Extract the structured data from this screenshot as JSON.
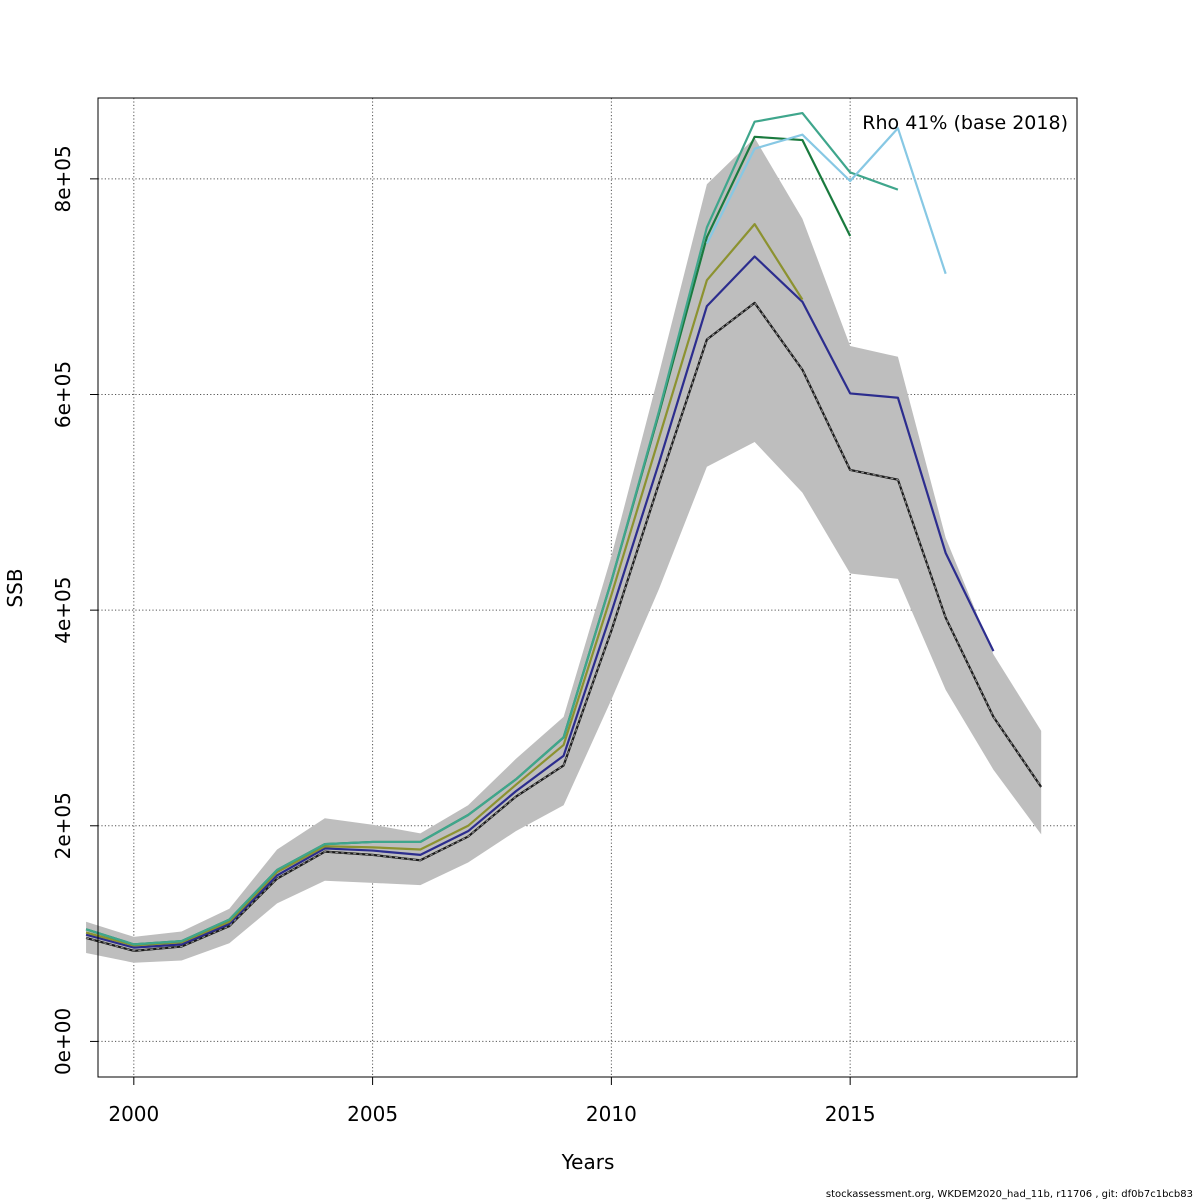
{
  "chart_data": {
    "type": "line",
    "xlabel": "Years",
    "ylabel": "SSB",
    "xlim": [
      1999.25,
      2019.75
    ],
    "ylim": [
      -33000,
      875000
    ],
    "x_ticks": [
      2000,
      2005,
      2010,
      2015
    ],
    "x_tick_labels": [
      "2000",
      "2005",
      "2010",
      "2015"
    ],
    "y_ticks": [
      0,
      200000,
      400000,
      600000,
      800000
    ],
    "y_tick_labels": [
      "0e+00",
      "2e+05",
      "4e+05",
      "6e+05",
      "8e+05"
    ],
    "grid": true,
    "annotation": "Rho 41% (base 2018)",
    "footer": "stockassessment.org, WKDEM2020_had_11b, r11706 , git: df0b7c1bcb83",
    "confidence_band": {
      "color": "#bebebe",
      "x": [
        1999,
        2000,
        2001,
        2002,
        2003,
        2004,
        2005,
        2006,
        2007,
        2008,
        2009,
        2010,
        2011,
        2012,
        2013,
        2014,
        2015,
        2016,
        2017,
        2018,
        2019
      ],
      "lower": [
        82000,
        73000,
        75000,
        91000,
        128000,
        149000,
        147000,
        145000,
        166000,
        195000,
        219000,
        317000,
        420000,
        533000,
        556000,
        509000,
        434000,
        429000,
        326000,
        252000,
        192000
      ],
      "upper": [
        111000,
        97000,
        102000,
        123000,
        178000,
        207000,
        201000,
        193000,
        219000,
        262000,
        301000,
        450000,
        620000,
        795000,
        838000,
        763000,
        645000,
        635000,
        467000,
        359000,
        288000
      ]
    },
    "series": [
      {
        "color": "#1a1a1a",
        "dashed": true,
        "x": [
          1999,
          2000,
          2001,
          2002,
          2003,
          2004,
          2005,
          2006,
          2007,
          2008,
          2009,
          2010,
          2011,
          2012,
          2013,
          2014,
          2015,
          2016,
          2017,
          2018,
          2019
        ],
        "values": [
          96000,
          84000,
          88000,
          107000,
          151000,
          176000,
          173000,
          168000,
          190000,
          227000,
          256000,
          381000,
          518000,
          651000,
          685000,
          623000,
          530000,
          521000,
          393000,
          301000,
          236000
        ]
      },
      {
        "color": "#2c2d8e",
        "x": [
          1999,
          2000,
          2001,
          2002,
          2003,
          2004,
          2005,
          2006,
          2007,
          2008,
          2009,
          2010,
          2011,
          2012,
          2013,
          2014,
          2015,
          2016,
          2017,
          2018
        ],
        "values": [
          99000,
          87000,
          90000,
          109000,
          154000,
          179000,
          177000,
          173000,
          195000,
          232000,
          265000,
          398000,
          537000,
          682000,
          728000,
          686000,
          601000,
          597000,
          453000,
          362000
        ]
      },
      {
        "color": "#8c9230",
        "x": [
          1999,
          2000,
          2001,
          2002,
          2003,
          2004,
          2005,
          2006,
          2007,
          2008,
          2009,
          2010,
          2011,
          2012,
          2013,
          2014
        ],
        "values": [
          101000,
          89000,
          92000,
          111000,
          157000,
          181000,
          180000,
          178000,
          200000,
          238000,
          275000,
          414000,
          560000,
          706000,
          758000,
          688000
        ]
      },
      {
        "color": "#1a7a3e",
        "x": [
          1999,
          2000,
          2001,
          2002,
          2003,
          2004,
          2005,
          2006,
          2007,
          2008,
          2009,
          2010,
          2011,
          2012,
          2013,
          2014,
          2015
        ],
        "values": [
          104000,
          90000,
          93000,
          113000,
          159000,
          183000,
          185000,
          185000,
          210000,
          243000,
          282000,
          427000,
          583000,
          746000,
          839000,
          836000,
          747000
        ]
      },
      {
        "color": "#3fa68c",
        "x": [
          1999,
          2000,
          2001,
          2002,
          2003,
          2004,
          2005,
          2006,
          2007,
          2008,
          2009,
          2010,
          2011,
          2012,
          2013,
          2014,
          2015,
          2016
        ],
        "values": [
          104000,
          90000,
          93000,
          113000,
          159000,
          183000,
          185000,
          185000,
          210000,
          243000,
          282000,
          427000,
          585000,
          755000,
          853000,
          861000,
          806000,
          790000
        ]
      },
      {
        "color": "#87c8e4",
        "x": [
          2012,
          2013,
          2014,
          2015,
          2016,
          2017
        ],
        "values": [
          740000,
          828000,
          841000,
          798000,
          847000,
          712000
        ]
      }
    ]
  }
}
